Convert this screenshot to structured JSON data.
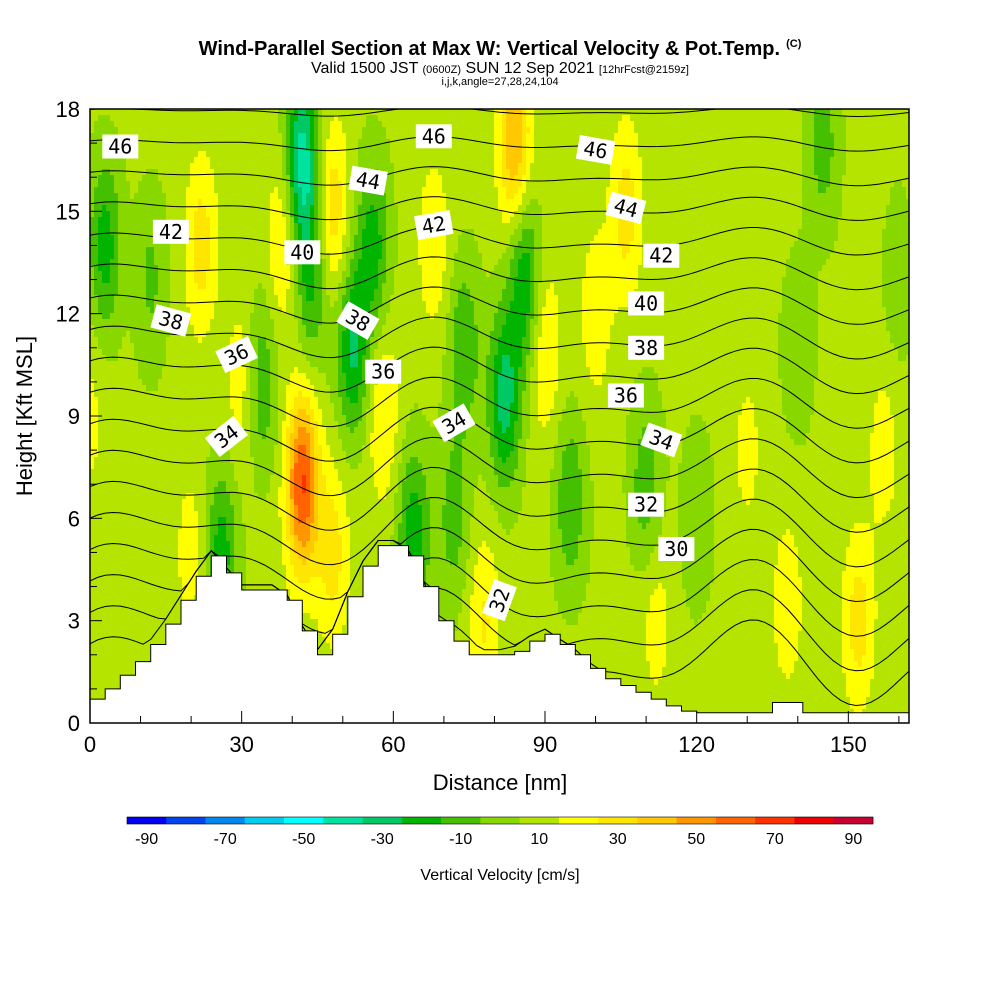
{
  "header": {
    "title": "Wind-Parallel Section at Max W: Vertical Velocity & Pot.Temp.",
    "title_mark": "(C)",
    "valid_prefix": "Valid 1500 JST",
    "valid_utc": "(0600Z)",
    "valid_date": "SUN 12 Sep 2021",
    "forecast": "[12hrFcst@2159z]",
    "params": "i,j,k,angle=27,28,24,104"
  },
  "chart_data": {
    "type": "heatmap",
    "xlabel": "Distance [nm]",
    "ylabel": "Height [Kft MSL]",
    "xlim": [
      0,
      162
    ],
    "ylim": [
      0,
      18
    ],
    "x_ticks": [
      0,
      30,
      60,
      90,
      120,
      150
    ],
    "y_ticks": [
      0,
      3,
      6,
      9,
      12,
      15,
      18
    ],
    "colorbar": {
      "title": "Vertical Velocity [cm/s]",
      "tick_labels": [
        "-90",
        "-70",
        "-50",
        "-30",
        "-10",
        "10",
        "30",
        "50",
        "70",
        "90"
      ],
      "tick_values": [
        -90,
        -70,
        -50,
        -30,
        -10,
        10,
        30,
        50,
        70,
        90
      ],
      "range": [
        -100,
        100
      ],
      "colors": [
        "#0000ee",
        "#0044ee",
        "#0088ee",
        "#00ccee",
        "#00ffff",
        "#00e3a0",
        "#00c864",
        "#00b400",
        "#44c000",
        "#88d800",
        "#b4e400",
        "#ffff00",
        "#ffe600",
        "#ffc800",
        "#ff9600",
        "#ff6400",
        "#ff3200",
        "#ee0000",
        "#c80032",
        "#960064",
        "#640096"
      ]
    },
    "terrain": {
      "x": [
        0,
        3,
        6,
        9,
        12,
        15,
        18,
        21,
        24,
        27,
        30,
        33,
        36,
        39,
        42,
        45,
        48,
        51,
        54,
        57,
        60,
        63,
        66,
        69,
        72,
        75,
        78,
        81,
        84,
        87,
        90,
        93,
        96,
        99,
        102,
        105,
        108,
        111,
        114,
        117,
        120,
        123,
        126,
        129,
        132,
        135,
        138,
        141,
        144,
        147,
        150,
        153,
        156,
        159,
        162
      ],
      "height": [
        0.7,
        1.0,
        1.4,
        1.8,
        2.3,
        2.9,
        3.6,
        4.3,
        4.9,
        4.4,
        3.9,
        3.9,
        3.9,
        3.6,
        2.7,
        2.0,
        2.6,
        3.7,
        4.6,
        5.2,
        5.2,
        4.9,
        4.0,
        3.0,
        2.4,
        2.0,
        2.0,
        2.0,
        2.1,
        2.4,
        2.6,
        2.3,
        2.0,
        1.6,
        1.3,
        1.1,
        0.9,
        0.7,
        0.5,
        0.35,
        0.3,
        0.3,
        0.3,
        0.3,
        0.3,
        0.6,
        0.6,
        0.3,
        0.3,
        0.3,
        0.3,
        0.3,
        0.3,
        0.3,
        0.3
      ]
    },
    "vertical_velocity_features": [
      {
        "x": 0,
        "y": 9,
        "w": 10
      },
      {
        "x": 3,
        "y": 14,
        "w": -28
      },
      {
        "x": 12,
        "y": 13,
        "w": -15
      },
      {
        "x": 20,
        "y": 5,
        "w": 12
      },
      {
        "x": 22,
        "y": 14,
        "w": 22
      },
      {
        "x": 26,
        "y": 5,
        "w": -28
      },
      {
        "x": 30,
        "y": 10,
        "w": 14
      },
      {
        "x": 34,
        "y": 10,
        "w": -22
      },
      {
        "x": 38,
        "y": 14,
        "w": 18
      },
      {
        "x": 42,
        "y": 7,
        "w": 58
      },
      {
        "x": 42,
        "y": 16.5,
        "w": -48
      },
      {
        "x": 44,
        "y": 13,
        "w": -25
      },
      {
        "x": 48,
        "y": 15,
        "w": 25
      },
      {
        "x": 48,
        "y": 5,
        "w": 22
      },
      {
        "x": 52,
        "y": 11,
        "w": -35
      },
      {
        "x": 56,
        "y": 14,
        "w": -28
      },
      {
        "x": 58,
        "y": 9,
        "w": 18
      },
      {
        "x": 64,
        "y": 5.5,
        "w": -30
      },
      {
        "x": 68,
        "y": 14,
        "w": 15
      },
      {
        "x": 72,
        "y": 6,
        "w": -18
      },
      {
        "x": 74,
        "y": 11,
        "w": -22
      },
      {
        "x": 78,
        "y": 3,
        "w": 18
      },
      {
        "x": 82,
        "y": 9.5,
        "w": -38
      },
      {
        "x": 84,
        "y": 17,
        "w": 38
      },
      {
        "x": 86,
        "y": 13,
        "w": -32
      },
      {
        "x": 90,
        "y": 11,
        "w": 18
      },
      {
        "x": 95,
        "y": 6.5,
        "w": -22
      },
      {
        "x": 100,
        "y": 12,
        "w": 14
      },
      {
        "x": 106,
        "y": 15,
        "w": 22
      },
      {
        "x": 110,
        "y": 7,
        "w": -20
      },
      {
        "x": 112,
        "y": 3,
        "w": 12
      },
      {
        "x": 120,
        "y": 6,
        "w": -12
      },
      {
        "x": 130,
        "y": 8,
        "w": 10
      },
      {
        "x": 138,
        "y": 3.5,
        "w": 14
      },
      {
        "x": 140,
        "y": 11,
        "w": -12
      },
      {
        "x": 145,
        "y": 17,
        "w": -18
      },
      {
        "x": 152,
        "y": 3,
        "w": 22
      },
      {
        "x": 157,
        "y": 8,
        "w": 12
      },
      {
        "x": 160,
        "y": 13,
        "w": -10
      }
    ],
    "potential_temperature_contours": {
      "levels": [
        30,
        31,
        32,
        33,
        34,
        35,
        36,
        37,
        38,
        39,
        40,
        41,
        42,
        43,
        44,
        45,
        46,
        47
      ],
      "labels": [
        {
          "text": "46",
          "x": 6,
          "y": 16.9,
          "angle": 0
        },
        {
          "text": "42",
          "x": 16,
          "y": 14.4,
          "angle": 0
        },
        {
          "text": "38",
          "x": 16,
          "y": 11.8,
          "angle": 15
        },
        {
          "text": "36",
          "x": 29,
          "y": 10.8,
          "angle": -25
        },
        {
          "text": "34",
          "x": 27,
          "y": 8.4,
          "angle": -38
        },
        {
          "text": "40",
          "x": 42,
          "y": 13.8,
          "angle": 0
        },
        {
          "text": "44",
          "x": 55,
          "y": 15.9,
          "angle": 10
        },
        {
          "text": "38",
          "x": 53,
          "y": 11.8,
          "angle": 30
        },
        {
          "text": "36",
          "x": 58,
          "y": 10.3,
          "angle": 0
        },
        {
          "text": "46",
          "x": 68,
          "y": 17.2,
          "angle": 0
        },
        {
          "text": "42",
          "x": 68,
          "y": 14.6,
          "angle": -10
        },
        {
          "text": "34",
          "x": 72,
          "y": 8.8,
          "angle": -30
        },
        {
          "text": "32",
          "x": 81,
          "y": 3.6,
          "angle": -70
        },
        {
          "text": "46",
          "x": 100,
          "y": 16.8,
          "angle": 10
        },
        {
          "text": "44",
          "x": 106,
          "y": 15.1,
          "angle": 15
        },
        {
          "text": "42",
          "x": 113,
          "y": 13.7,
          "angle": 0
        },
        {
          "text": "40",
          "x": 110,
          "y": 12.3,
          "angle": 0
        },
        {
          "text": "38",
          "x": 110,
          "y": 11.0,
          "angle": 0
        },
        {
          "text": "36",
          "x": 106,
          "y": 9.6,
          "angle": 0
        },
        {
          "text": "34",
          "x": 113,
          "y": 8.3,
          "angle": 20
        },
        {
          "text": "32",
          "x": 110,
          "y": 6.4,
          "angle": 0
        },
        {
          "text": "30",
          "x": 116,
          "y": 5.1,
          "angle": 0
        }
      ]
    }
  }
}
